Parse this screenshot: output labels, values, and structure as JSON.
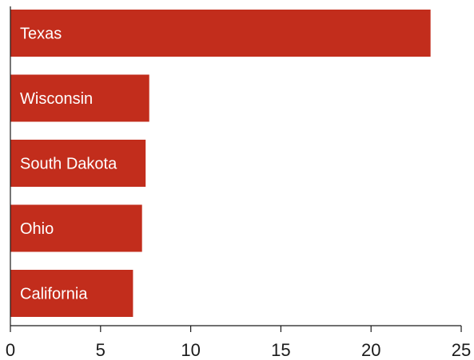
{
  "colors": {
    "bar": "#c22d1c",
    "bar_label": "#ffffff",
    "axis": "#1a1a1a"
  },
  "chart_data": {
    "type": "bar",
    "orientation": "horizontal",
    "title": "",
    "xlabel": "",
    "ylabel": "",
    "categories": [
      "Texas",
      "Wisconsin",
      "South Dakota",
      "Ohio",
      "California"
    ],
    "values": [
      23.3,
      7.7,
      7.5,
      7.3,
      6.8
    ],
    "xlim": [
      0,
      25
    ],
    "xticks": [
      "0",
      "5",
      "10",
      "15",
      "20",
      "25"
    ],
    "grid": false,
    "legend": "none"
  }
}
